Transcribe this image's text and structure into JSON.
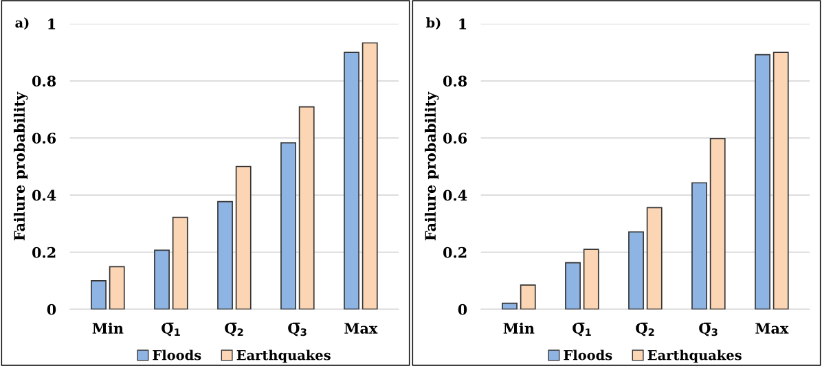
{
  "chart_data": [
    {
      "type": "bar",
      "title": "a)",
      "ylabel": "Failure probability",
      "categories": [
        "Min",
        "Q̅$_{1}$",
        "Q̅$_{2}$",
        "Q̅$_{3}$",
        "Max"
      ],
      "series": [
        {
          "name": "Floods",
          "color": "#8eb4e3",
          "values": [
            0.1,
            0.207,
            0.377,
            0.583,
            0.9
          ]
        },
        {
          "name": "Earthquakes",
          "color": "#fcd5b5",
          "values": [
            0.149,
            0.322,
            0.5,
            0.709,
            0.933
          ]
        }
      ],
      "ylim": [
        0,
        1
      ],
      "yticks": [
        0,
        0.2,
        0.4,
        0.6,
        0.8,
        1
      ],
      "grid": "y",
      "legend": "bottom"
    },
    {
      "type": "bar",
      "title": "b)",
      "ylabel": "Failure probability",
      "categories": [
        "Min",
        "Q̅$_{1}$",
        "Q̅$_{2}$",
        "Q̅$_{3}$",
        "Max"
      ],
      "series": [
        {
          "name": "Floods",
          "color": "#8eb4e3",
          "values": [
            0.021,
            0.163,
            0.271,
            0.443,
            0.892
          ]
        },
        {
          "name": "Earthquakes",
          "color": "#fcd5b5",
          "values": [
            0.085,
            0.21,
            0.356,
            0.598,
            0.9
          ]
        }
      ],
      "ylim": [
        0,
        1
      ],
      "yticks": [
        0,
        0.2,
        0.4,
        0.6,
        0.8,
        1
      ],
      "grid": "y",
      "legend": "bottom"
    }
  ]
}
